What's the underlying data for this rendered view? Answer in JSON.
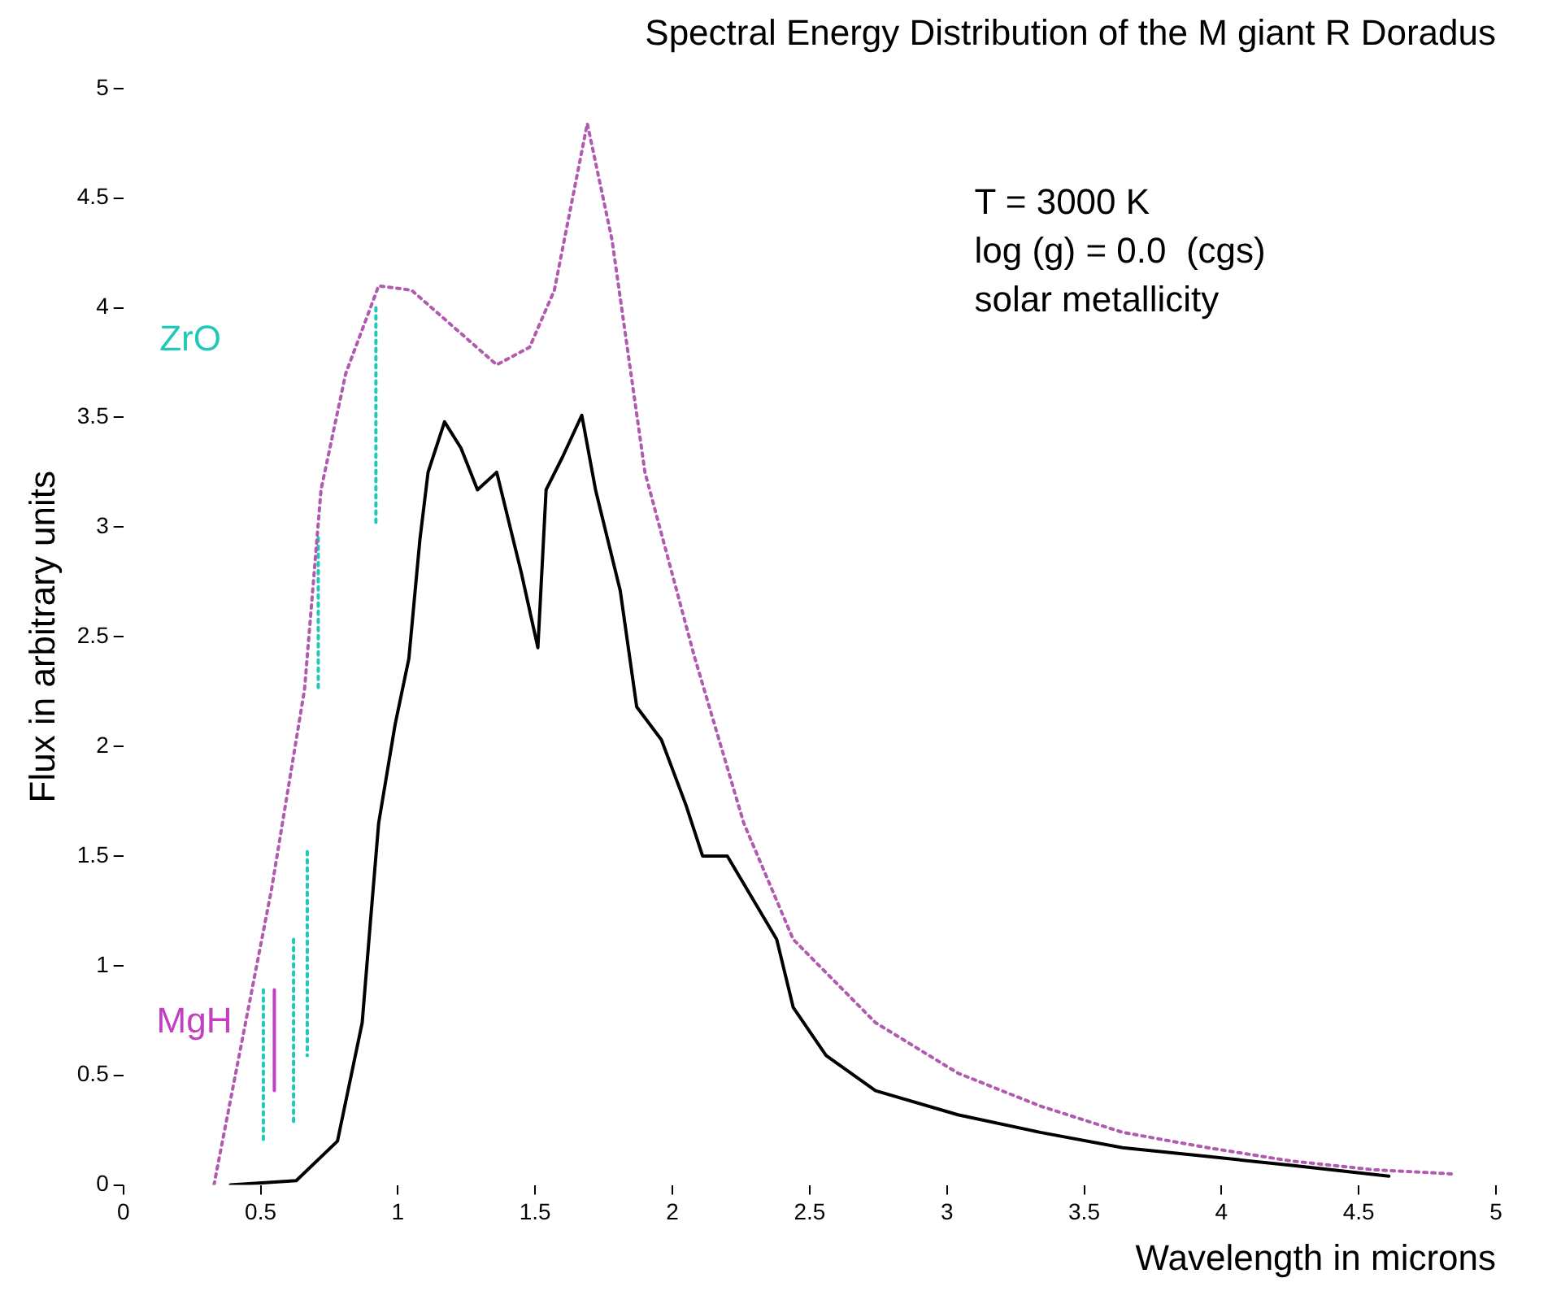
{
  "chart_data": {
    "type": "line",
    "title": "Spectral Energy Distribution of the M giant R Doradus",
    "xlabel": "Wavelength in microns",
    "ylabel": "Flux in arbitrary units",
    "xlim": [
      0,
      5
    ],
    "xticks": [
      0,
      0.5,
      1,
      1.5,
      2,
      2.5,
      3,
      3.5,
      4,
      4.5,
      5
    ],
    "ylim": [
      0,
      5
    ],
    "yticks": [
      0,
      0.5,
      1,
      1.5,
      2,
      2.5,
      3,
      3.5,
      4,
      4.5,
      5
    ],
    "grid": false,
    "legend": false,
    "marker": "none",
    "annotations": [
      "T = 3000 K",
      "log (g) = 0.0  (cgs)",
      "solar metallicity"
    ],
    "series": [
      {
        "color": "#b05ab0",
        "line_style": "dotted",
        "x": [
          0.33,
          0.54,
          0.66,
          0.72,
          0.81,
          0.93,
          1.05,
          1.36,
          1.48,
          1.57,
          1.69,
          1.78,
          1.9,
          2.08,
          2.26,
          2.44,
          2.74,
          3.04,
          3.34,
          3.64,
          3.95,
          4.25,
          4.55,
          4.85
        ],
        "values": [
          0,
          1.35,
          2.26,
          3.17,
          3.7,
          4.1,
          4.08,
          3.74,
          3.82,
          4.08,
          4.84,
          4.31,
          3.25,
          2.41,
          1.65,
          1.12,
          0.74,
          0.51,
          0.36,
          0.24,
          0.17,
          0.11,
          0.07,
          0.05
        ]
      },
      {
        "color": "#000000",
        "line_style": "solid",
        "x": [
          0.39,
          0.63,
          0.78,
          0.87,
          0.9,
          0.93,
          0.99,
          1.04,
          1.08,
          1.11,
          1.17,
          1.23,
          1.29,
          1.36,
          1.45,
          1.51,
          1.54,
          1.6,
          1.67,
          1.72,
          1.81,
          1.87,
          1.96,
          2.05,
          2.11,
          2.2,
          2.38,
          2.44,
          2.56,
          2.74,
          3.04,
          3.34,
          3.64,
          3.95,
          4.25,
          4.61
        ],
        "values": [
          0,
          0.02,
          0.2,
          0.74,
          1.2,
          1.65,
          2.1,
          2.4,
          2.94,
          3.25,
          3.48,
          3.36,
          3.17,
          3.25,
          2.79,
          2.45,
          3.17,
          3.32,
          3.51,
          3.17,
          2.71,
          2.18,
          2.03,
          1.73,
          1.5,
          1.5,
          1.12,
          0.81,
          0.59,
          0.43,
          0.32,
          0.24,
          0.17,
          0.13,
          0.09,
          0.04
        ]
      },
      {
        "name": "ZrO",
        "color": "#20c8b8",
        "line_style": "dotted",
        "x": [
          0.92,
          0.92,
          null,
          0.71,
          0.71,
          null,
          0.67,
          0.67,
          null,
          0.62,
          0.62,
          null,
          0.51,
          0.51
        ],
        "values": [
          4.0,
          3.0,
          null,
          2.95,
          2.26,
          null,
          1.52,
          0.59,
          null,
          1.12,
          0.28,
          null,
          0.89,
          0.2
        ]
      },
      {
        "name": "MgH",
        "color": "#c040c0",
        "line_style": "solid",
        "x": [
          0.55,
          0.55
        ],
        "values": [
          0.89,
          0.43
        ]
      }
    ]
  }
}
